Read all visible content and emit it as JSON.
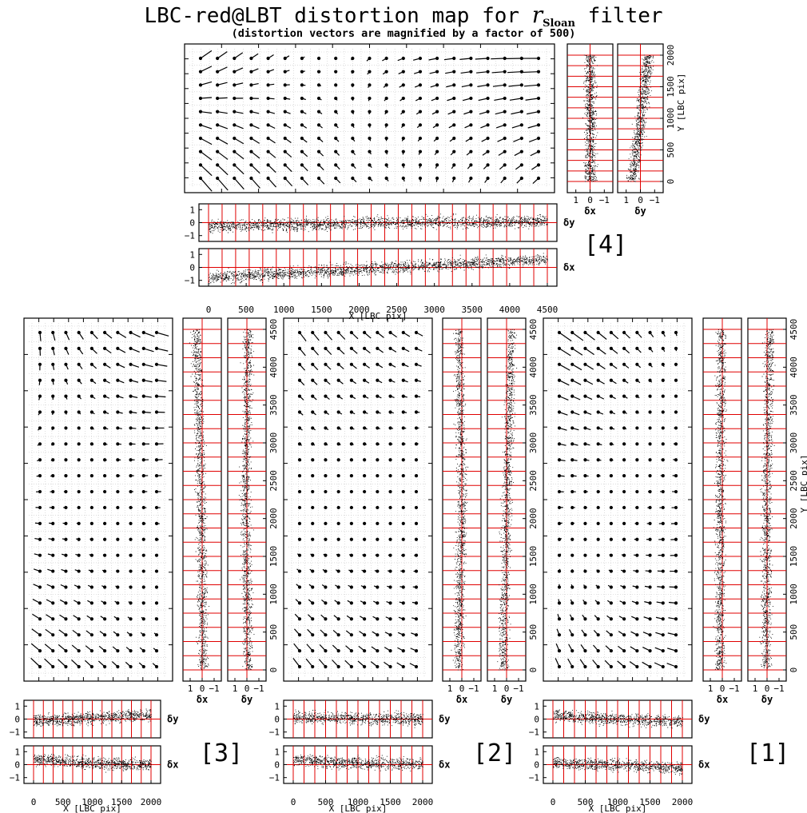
{
  "title": {
    "prefix": "LBC-red@LBT distortion map for ",
    "italic": "r",
    "subscript": "Sloan",
    "suffix": " filter"
  },
  "subtitle": "(distortion vectors are magnified by a factor of 500)",
  "chart_data": [
    {
      "id": "chip-4",
      "type": "scatter",
      "chip_label": "[4]",
      "xlabel": "X [LBC pix]",
      "ylabel": "Y [LBC pix]",
      "xlim": [
        -250,
        4850
      ],
      "ylim": [
        -130,
        2180
      ],
      "x_ticks": [
        0,
        500,
        1000,
        1500,
        2000,
        2500,
        3000,
        3500,
        4000,
        4500
      ],
      "y_ticks": [
        0,
        500,
        1000,
        1500,
        2000
      ],
      "residual_ticks": [
        1,
        0,
        -1
      ],
      "residual_panels": [
        {
          "name": "δy",
          "trend_x": [
            0,
            2400,
            4500
          ],
          "trend_y": [
            -0.3,
            0.0,
            0.1
          ]
        },
        {
          "name": "δx",
          "trend_x": [
            0,
            2400,
            4500
          ],
          "trend_y": [
            -0.8,
            0.0,
            0.6
          ]
        }
      ],
      "side_panels": [
        {
          "name": "δx",
          "trend_y": [
            0,
            1000,
            2050
          ],
          "trend_value": [
            0.0,
            0.0,
            0.0
          ]
        },
        {
          "name": "δy",
          "trend_y": [
            0,
            1000,
            2050
          ],
          "trend_value": [
            0.6,
            0.0,
            -0.55
          ]
        }
      ],
      "vector_magnification": 500
    },
    {
      "id": "chip-3",
      "type": "scatter",
      "chip_label": "[3]",
      "xlabel": "X [LBC pix]",
      "ylabel": "",
      "xlim": [
        -150,
        2200
      ],
      "ylim": [
        -220,
        4830
      ],
      "x_ticks": [
        0,
        500,
        1000,
        1500,
        2000
      ],
      "y_ticks": [
        0,
        500,
        1000,
        1500,
        2000,
        2500,
        3000,
        3500,
        4000,
        4500
      ],
      "residual_ticks": [
        1,
        0,
        -1
      ],
      "residual_panels": [
        {
          "name": "δy",
          "trend_x": [
            0,
            1000,
            2000
          ],
          "trend_y": [
            -0.15,
            0.1,
            0.3
          ]
        },
        {
          "name": "δx",
          "trend_x": [
            0,
            1000,
            2000
          ],
          "trend_y": [
            0.45,
            0.1,
            0.0
          ]
        }
      ],
      "side_panels": [
        {
          "name": "δx",
          "trend_y": [
            0,
            2300,
            4600
          ],
          "trend_value": [
            -0.05,
            0.1,
            0.55
          ]
        },
        {
          "name": "δy",
          "trend_y": [
            0,
            2300,
            4600
          ],
          "trend_value": [
            -0.1,
            0.15,
            -0.1
          ]
        }
      ],
      "vector_magnification": 500
    },
    {
      "id": "chip-2",
      "type": "scatter",
      "chip_label": "[2]",
      "xlabel": "X [LBC pix]",
      "ylabel": "",
      "xlim": [
        -150,
        2200
      ],
      "ylim": [
        -220,
        4830
      ],
      "x_ticks": [
        0,
        500,
        1000,
        1500,
        2000
      ],
      "y_ticks": [
        0,
        500,
        1000,
        1500,
        2000,
        2500,
        3000,
        3500,
        4000,
        4500
      ],
      "residual_ticks": [
        1,
        0,
        -1
      ],
      "residual_panels": [
        {
          "name": "δy",
          "trend_x": [
            0,
            1000,
            2000
          ],
          "trend_y": [
            0.15,
            0.05,
            0.0
          ]
        },
        {
          "name": "δx",
          "trend_x": [
            0,
            1000,
            2000
          ],
          "trend_y": [
            0.35,
            0.1,
            0.05
          ]
        }
      ],
      "side_panels": [
        {
          "name": "δx",
          "trend_y": [
            0,
            2300,
            4600
          ],
          "trend_value": [
            0.35,
            0.0,
            0.3
          ]
        },
        {
          "name": "δy",
          "trend_y": [
            0,
            2300,
            4600
          ],
          "trend_value": [
            0.3,
            0.0,
            -0.45
          ]
        }
      ],
      "vector_magnification": 500
    },
    {
      "id": "chip-1",
      "type": "scatter",
      "chip_label": "[1]",
      "xlabel": "X [LBC pix]",
      "ylabel": "Y [LBC pix]",
      "xlim": [
        -150,
        2200
      ],
      "ylim": [
        -220,
        4830
      ],
      "x_ticks": [
        0,
        500,
        1000,
        1500,
        2000
      ],
      "y_ticks": [
        0,
        500,
        1000,
        1500,
        2000,
        2500,
        3000,
        3500,
        4000,
        4500
      ],
      "residual_ticks": [
        1,
        0,
        -1
      ],
      "residual_panels": [
        {
          "name": "δy",
          "trend_x": [
            0,
            1000,
            2000
          ],
          "trend_y": [
            0.25,
            0.0,
            -0.2
          ]
        },
        {
          "name": "δx",
          "trend_x": [
            0,
            1000,
            2000
          ],
          "trend_y": [
            0.1,
            0.0,
            -0.3
          ]
        }
      ],
      "side_panels": [
        {
          "name": "δx",
          "trend_y": [
            0,
            2300,
            4600
          ],
          "trend_value": [
            0.25,
            0.2,
            0.1
          ]
        },
        {
          "name": "δy",
          "trend_y": [
            0,
            2300,
            4600
          ],
          "trend_value": [
            0.1,
            0.05,
            -0.2
          ]
        }
      ],
      "vector_magnification": 500
    }
  ]
}
